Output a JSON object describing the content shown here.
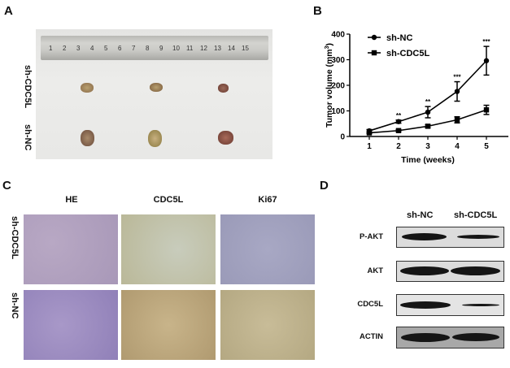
{
  "panels": {
    "A": {
      "letter": "A",
      "row_labels": [
        "sh-CDC5L",
        "sh-NC"
      ],
      "ruler_ticks": [
        "1",
        "2",
        "3",
        "4",
        "5",
        "6",
        "7",
        "8",
        "9",
        "10",
        "11",
        "12",
        "13",
        "14",
        "15"
      ]
    },
    "B": {
      "letter": "B"
    },
    "C": {
      "letter": "C",
      "column_titles": [
        "HE",
        "CDC5L",
        "Ki67"
      ],
      "row_labels": [
        "sh-CDC5L",
        "sh-NC"
      ]
    },
    "D": {
      "letter": "D",
      "column_titles": [
        "sh-NC",
        "sh-CDC5L"
      ],
      "rows": [
        "P-AKT",
        "AKT",
        "CDC5L",
        "ACTIN"
      ]
    }
  },
  "chart_data": {
    "type": "line",
    "title": "",
    "xlabel": "Time (weeks)",
    "ylabel": "Tumor volume (mm3)",
    "x": [
      1,
      2,
      3,
      4,
      5
    ],
    "xticks": [
      "1",
      "2",
      "3",
      "4",
      "5"
    ],
    "yticks": [
      "0",
      "100",
      "200",
      "300",
      "400"
    ],
    "ylim": [
      0,
      400
    ],
    "grid": false,
    "legend_position": "upper-left",
    "series": [
      {
        "name": "sh-NC",
        "marker": "circle",
        "values": [
          22,
          58,
          95,
          176,
          296
        ],
        "error": [
          5,
          6,
          22,
          38,
          56
        ]
      },
      {
        "name": "sh-CDC5L",
        "marker": "square",
        "values": [
          14,
          23,
          40,
          65,
          104
        ],
        "error": [
          3,
          4,
          6,
          12,
          18
        ]
      }
    ],
    "annotations": [
      {
        "x": 2,
        "text": "**"
      },
      {
        "x": 3,
        "text": "**"
      },
      {
        "x": 4,
        "text": "***"
      },
      {
        "x": 5,
        "text": "***"
      }
    ]
  }
}
